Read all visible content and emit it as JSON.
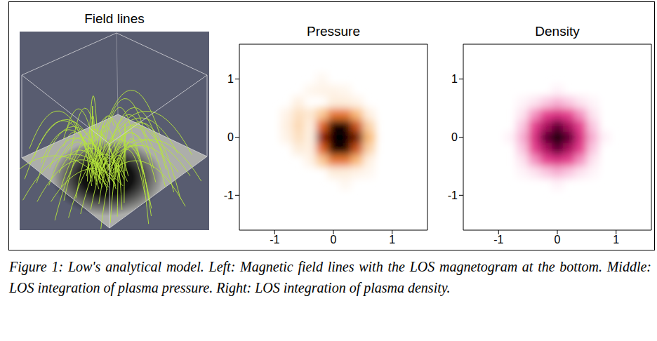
{
  "figure": {
    "field_lines": {
      "title": "Field lines"
    },
    "caption": "Figure 1: Low's analytical model. Left: Magnetic field lines with the LOS magnetogram at the bottom. Middle: LOS integration of plasma pressure. Right: LOS integration of plasma density."
  },
  "chart_data": [
    {
      "type": "heatmap",
      "title": "Pressure",
      "xlim": [
        -1.6,
        1.6
      ],
      "ylim": [
        -1.6,
        1.6
      ],
      "xticks": [
        -1,
        0,
        1
      ],
      "yticks": [
        -1,
        0,
        1
      ],
      "zlim": [
        0,
        1
      ],
      "cell_size": 0.2,
      "cells": [
        [
          0,
          0,
          1
        ],
        [
          0.2,
          0,
          1
        ],
        [
          0,
          0.2,
          0.95
        ],
        [
          0.2,
          0.2,
          0.95
        ],
        [
          0,
          -0.2,
          0.95
        ],
        [
          0.2,
          -0.2,
          0.95
        ],
        [
          0.4,
          0,
          0.8
        ],
        [
          -0.2,
          0,
          0.75
        ],
        [
          0.4,
          0.2,
          0.6
        ],
        [
          0.4,
          -0.2,
          0.6
        ],
        [
          -0.2,
          0.2,
          0.55
        ],
        [
          -0.2,
          -0.2,
          0.55
        ],
        [
          0,
          0.4,
          0.5
        ],
        [
          0.2,
          0.4,
          0.5
        ],
        [
          0,
          -0.4,
          0.5
        ],
        [
          0.2,
          -0.4,
          0.5
        ],
        [
          0.4,
          0.4,
          0.3
        ],
        [
          0.4,
          -0.4,
          0.3
        ],
        [
          -0.2,
          0.4,
          0.25
        ],
        [
          -0.2,
          -0.4,
          0.25
        ],
        [
          0.6,
          0,
          0.3
        ],
        [
          0.6,
          0.2,
          0.22
        ],
        [
          0.6,
          -0.2,
          0.22
        ],
        [
          -0.4,
          0,
          0.1
        ],
        [
          -0.4,
          0.2,
          0.1
        ],
        [
          -0.4,
          -0.2,
          0.1
        ],
        [
          0,
          0.6,
          0.12
        ],
        [
          0.2,
          0.6,
          0.12
        ],
        [
          0,
          -0.6,
          0.12
        ],
        [
          0.2,
          -0.6,
          0.12
        ],
        [
          0.6,
          0.4,
          0.1
        ],
        [
          0.6,
          -0.4,
          0.1
        ],
        [
          -0.6,
          0.2,
          0.2
        ],
        [
          -0.6,
          0,
          0.18
        ],
        [
          -0.6,
          0.4,
          0.18
        ],
        [
          -0.4,
          0.4,
          0.15
        ],
        [
          -0.8,
          0.2,
          0.1
        ],
        [
          -0.6,
          -0.2,
          0.12
        ],
        [
          -0.4,
          -0.4,
          0.08
        ],
        [
          -0.6,
          0.6,
          0.1
        ],
        [
          -0.8,
          0,
          0.08
        ],
        [
          -0.8,
          0.4,
          0.08
        ],
        [
          -0.2,
          0.8,
          0.08
        ],
        [
          0,
          0.8,
          0.08
        ],
        [
          0.2,
          0.8,
          0.06
        ],
        [
          0.4,
          0.6,
          0.08
        ],
        [
          -0.4,
          0.8,
          0.06
        ],
        [
          -0.2,
          1,
          0.05
        ],
        [
          0.4,
          -0.6,
          0.08
        ],
        [
          0.6,
          -0.6,
          0.05
        ],
        [
          0.2,
          -0.8,
          0.05
        ]
      ]
    },
    {
      "type": "heatmap",
      "title": "Density",
      "xlim": [
        -1.6,
        1.6
      ],
      "ylim": [
        -1.6,
        1.6
      ],
      "xticks": [
        -1,
        0,
        1
      ],
      "yticks": [
        -1,
        0,
        1
      ],
      "zlim": [
        0,
        1
      ],
      "cell_size": 0.2,
      "cells": [
        [
          0,
          0,
          1
        ],
        [
          0.2,
          0,
          0.85
        ],
        [
          -0.2,
          0,
          0.85
        ],
        [
          0,
          0.2,
          0.85
        ],
        [
          0,
          -0.2,
          0.85
        ],
        [
          0.2,
          0.2,
          0.7
        ],
        [
          0.2,
          -0.2,
          0.7
        ],
        [
          -0.2,
          0.2,
          0.7
        ],
        [
          -0.2,
          -0.2,
          0.7
        ],
        [
          0.4,
          0,
          0.55
        ],
        [
          -0.4,
          0,
          0.55
        ],
        [
          0,
          0.4,
          0.55
        ],
        [
          0,
          -0.4,
          0.55
        ],
        [
          0.4,
          0.2,
          0.48
        ],
        [
          0.4,
          -0.2,
          0.48
        ],
        [
          -0.4,
          0.2,
          0.48
        ],
        [
          -0.4,
          -0.2,
          0.48
        ],
        [
          0.2,
          0.4,
          0.48
        ],
        [
          0.2,
          -0.4,
          0.48
        ],
        [
          -0.2,
          0.4,
          0.48
        ],
        [
          -0.2,
          -0.4,
          0.48
        ],
        [
          0.4,
          0.4,
          0.3
        ],
        [
          0.4,
          -0.4,
          0.3
        ],
        [
          -0.4,
          0.4,
          0.3
        ],
        [
          -0.4,
          -0.4,
          0.3
        ],
        [
          0.6,
          0,
          0.25
        ],
        [
          -0.6,
          0,
          0.25
        ],
        [
          0,
          0.6,
          0.25
        ],
        [
          0,
          -0.6,
          0.25
        ],
        [
          0.6,
          0.2,
          0.2
        ],
        [
          0.6,
          -0.2,
          0.2
        ],
        [
          -0.6,
          0.2,
          0.2
        ],
        [
          -0.6,
          -0.2,
          0.2
        ],
        [
          0.2,
          0.6,
          0.2
        ],
        [
          0.2,
          -0.6,
          0.2
        ],
        [
          -0.2,
          0.6,
          0.2
        ],
        [
          -0.2,
          -0.6,
          0.2
        ],
        [
          0.6,
          0.4,
          0.1
        ],
        [
          0.6,
          -0.4,
          0.1
        ],
        [
          -0.6,
          0.4,
          0.1
        ],
        [
          -0.6,
          -0.4,
          0.1
        ],
        [
          0.4,
          0.6,
          0.1
        ],
        [
          0.4,
          -0.6,
          0.1
        ],
        [
          -0.4,
          0.6,
          0.1
        ],
        [
          -0.4,
          -0.6,
          0.1
        ],
        [
          0.8,
          0,
          0.05
        ],
        [
          -0.8,
          0,
          0.05
        ],
        [
          0,
          0.8,
          0.05
        ],
        [
          0,
          -0.8,
          0.05
        ],
        [
          0.6,
          0.6,
          0.04
        ],
        [
          0.6,
          -0.6,
          0.04
        ],
        [
          -0.6,
          0.6,
          0.04
        ],
        [
          -0.6,
          -0.6,
          0.04
        ]
      ]
    }
  ]
}
